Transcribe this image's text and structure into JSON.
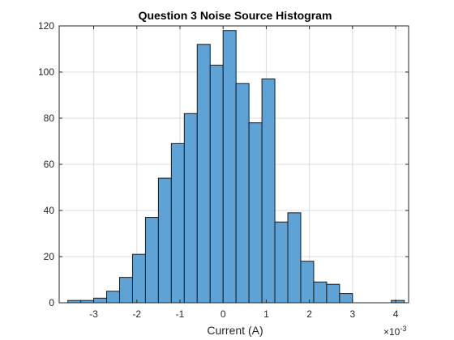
{
  "chart_data": {
    "type": "bar",
    "title": "Question 3 Noise Source Histogram",
    "xlabel": "Current (A)",
    "ylabel": "",
    "x_multiplier_label": "×10",
    "x_multiplier_exponent": "-3",
    "xlim": [
      -3.8,
      4.3
    ],
    "ylim": [
      0,
      120
    ],
    "bin_start": -3.6,
    "bin_width": 0.3,
    "values": [
      1,
      1,
      2,
      5,
      11,
      21,
      37,
      54,
      69,
      82,
      112,
      103,
      118,
      95,
      78,
      97,
      35,
      39,
      18,
      9,
      8,
      4,
      0,
      0,
      0,
      1
    ],
    "x_ticks": [
      -3,
      -2,
      -1,
      0,
      1,
      2,
      3,
      4
    ],
    "x_tick_labels": [
      "-3",
      "-2",
      "-1",
      "0",
      "1",
      "2",
      "3",
      "4"
    ],
    "y_ticks": [
      0,
      20,
      40,
      60,
      80,
      100,
      120
    ],
    "y_tick_labels": [
      "0",
      "20",
      "40",
      "60",
      "80",
      "100",
      "120"
    ],
    "grid": true,
    "colors": {
      "bar_fill": "#5fa2d6",
      "bar_edge": "#1a1a1a"
    }
  }
}
